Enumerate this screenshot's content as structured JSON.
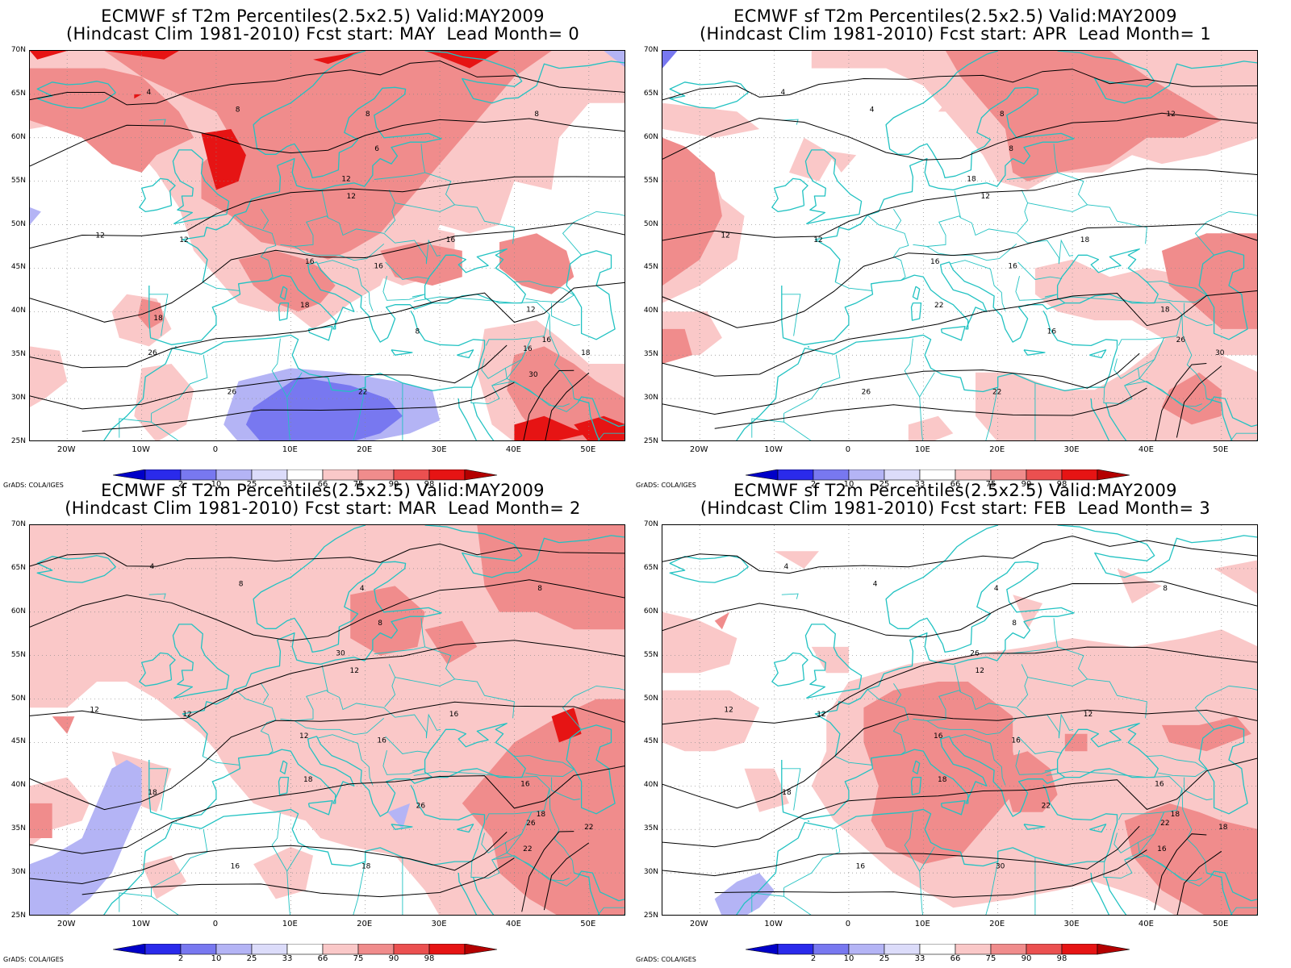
{
  "panels": [
    {
      "title1": "ECMWF sf T2m Percentiles(2.5x2.5) Valid:MAY2009",
      "title2": "(Hindcast Clim 1981-2010) Fcst start: MAY  Lead Month= 0"
    },
    {
      "title1": "ECMWF sf T2m Percentiles(2.5x2.5) Valid:MAY2009",
      "title2": "(Hindcast Clim 1981-2010) Fcst start: APR  Lead Month= 1"
    },
    {
      "title1": "ECMWF sf T2m Percentiles(2.5x2.5) Valid:MAY2009",
      "title2": "(Hindcast Clim 1981-2010) Fcst start: MAR  Lead Month= 2"
    },
    {
      "title1": "ECMWF sf T2m Percentiles(2.5x2.5) Valid:MAY2009",
      "title2": "(Hindcast Clim 1981-2010) Fcst start: FEB  Lead Month= 3"
    }
  ],
  "lat_labels": [
    "70N",
    "65N",
    "60N",
    "55N",
    "50N",
    "45N",
    "40N",
    "35N",
    "30N",
    "25N"
  ],
  "lon_labels": [
    "20W",
    "10W",
    "0",
    "10E",
    "20E",
    "30E",
    "40E",
    "50E"
  ],
  "colorbar": {
    "labels": [
      "2",
      "10",
      "25",
      "33",
      "66",
      "75",
      "90",
      "98"
    ],
    "colors": [
      "#0000c8",
      "#2a2aeb",
      "#7878f0",
      "#b4b4f5",
      "#dcdcfa",
      "#ffffff",
      "#fac8c8",
      "#f08c8c",
      "#eb5050",
      "#e61414",
      "#b40000"
    ]
  },
  "credit": "GrADS: COLA/IGES",
  "colors": {
    "coast": "#22c2c2",
    "contour": "#000000",
    "anom_light": "#fac8c8",
    "anom_mid": "#f08c8c",
    "anom_strong": "#eb5050",
    "anom_max": "#e61414",
    "cold_light": "#b4b4f5",
    "cold_mid": "#7878f0"
  },
  "contour_labels": [
    [
      "4",
      "8",
      "8",
      "6",
      "8",
      "12",
      "12",
      "12",
      "16",
      "16",
      "12",
      "16",
      "18",
      "16",
      "18",
      "8",
      "12",
      "22",
      "26",
      "30",
      "16",
      "18",
      "26"
    ],
    [
      "4",
      "4",
      "8",
      "8",
      "12",
      "12",
      "12",
      "12",
      "16",
      "16",
      "18",
      "18",
      "22",
      "26",
      "30",
      "16",
      "18",
      "22",
      "26"
    ],
    [
      "4",
      "8",
      "4",
      "8",
      "8",
      "12",
      "12",
      "12",
      "12",
      "16",
      "16",
      "16",
      "18",
      "18",
      "22",
      "26",
      "30",
      "18",
      "16",
      "22",
      "26",
      "18"
    ],
    [
      "4",
      "4",
      "4",
      "8",
      "8",
      "12",
      "12",
      "12",
      "16",
      "16",
      "16",
      "12",
      "18",
      "18",
      "18",
      "22",
      "26",
      "30",
      "16",
      "16",
      "22",
      "18"
    ]
  ]
}
